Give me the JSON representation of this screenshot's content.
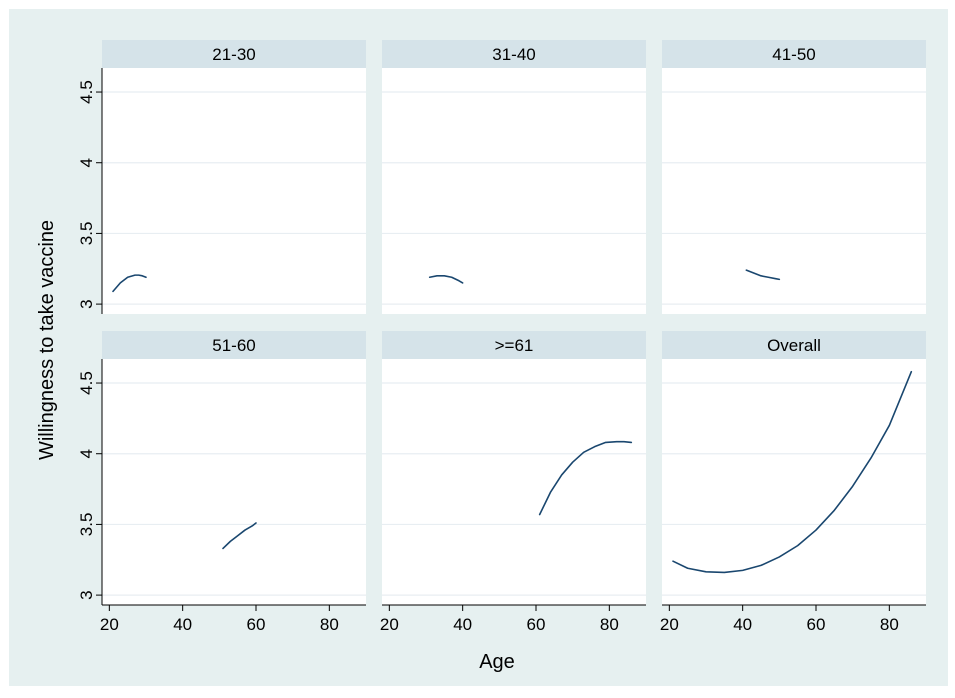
{
  "chart_data": {
    "type": "line",
    "xlabel": "Age",
    "ylabel": "Willingness to take vaccine",
    "xlim": [
      18,
      90
    ],
    "ylim": [
      2.93,
      4.67
    ],
    "x_ticks": [
      20,
      40,
      60,
      80
    ],
    "y_ticks": [
      3,
      3.5,
      4,
      4.5
    ],
    "y_tick_labels": [
      "3",
      "3.5",
      "4",
      "4.5"
    ],
    "grid": "horizontal",
    "colors": {
      "outer_background": "#e6f0f0",
      "panel_background": "#ffffff",
      "strip_background": "#d5e3e9",
      "line": "#1a476f",
      "grid": "#e8eef2"
    },
    "panels": [
      {
        "title": "21-30",
        "x": [
          21,
          23,
          25,
          27,
          28,
          29,
          30
        ],
        "y": [
          3.09,
          3.15,
          3.19,
          3.205,
          3.205,
          3.2,
          3.19
        ]
      },
      {
        "title": "31-40",
        "x": [
          31,
          33,
          35,
          37,
          39,
          40
        ],
        "y": [
          3.19,
          3.2,
          3.2,
          3.19,
          3.165,
          3.15
        ]
      },
      {
        "title": "41-50",
        "x": [
          41,
          43,
          45,
          47,
          49,
          50
        ],
        "y": [
          3.24,
          3.22,
          3.2,
          3.19,
          3.18,
          3.175
        ]
      },
      {
        "title": "51-60",
        "x": [
          51,
          53,
          55,
          57,
          59,
          60
        ],
        "y": [
          3.33,
          3.38,
          3.42,
          3.46,
          3.49,
          3.51
        ]
      },
      {
        "title": ">=61",
        "x": [
          61,
          64,
          67,
          70,
          73,
          76,
          79,
          82,
          84,
          86
        ],
        "y": [
          3.57,
          3.73,
          3.85,
          3.94,
          4.01,
          4.05,
          4.08,
          4.085,
          4.085,
          4.08
        ]
      },
      {
        "title": "Overall",
        "x": [
          21,
          25,
          30,
          35,
          40,
          45,
          50,
          55,
          60,
          65,
          70,
          75,
          80,
          86
        ],
        "y": [
          3.24,
          3.19,
          3.165,
          3.16,
          3.175,
          3.21,
          3.27,
          3.35,
          3.46,
          3.6,
          3.77,
          3.97,
          4.2,
          4.58
        ]
      }
    ]
  }
}
